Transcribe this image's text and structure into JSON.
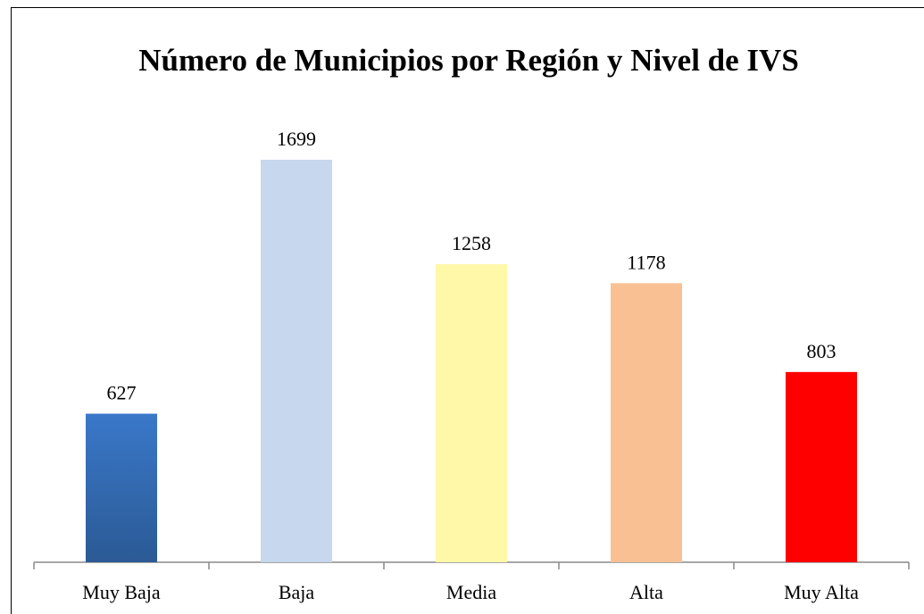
{
  "chart_data": {
    "type": "bar",
    "title": "Número de Municipios por Región y Nivel de IVS",
    "categories": [
      "Muy Baja",
      "Baja",
      "Media",
      "Alta",
      "Muy Alta"
    ],
    "values": [
      627,
      1699,
      1258,
      1178,
      803
    ],
    "colors": [
      "#3a78c9",
      "#c6d7ee",
      "#fff8a8",
      "#f9c093",
      "#ff0000"
    ]
  }
}
